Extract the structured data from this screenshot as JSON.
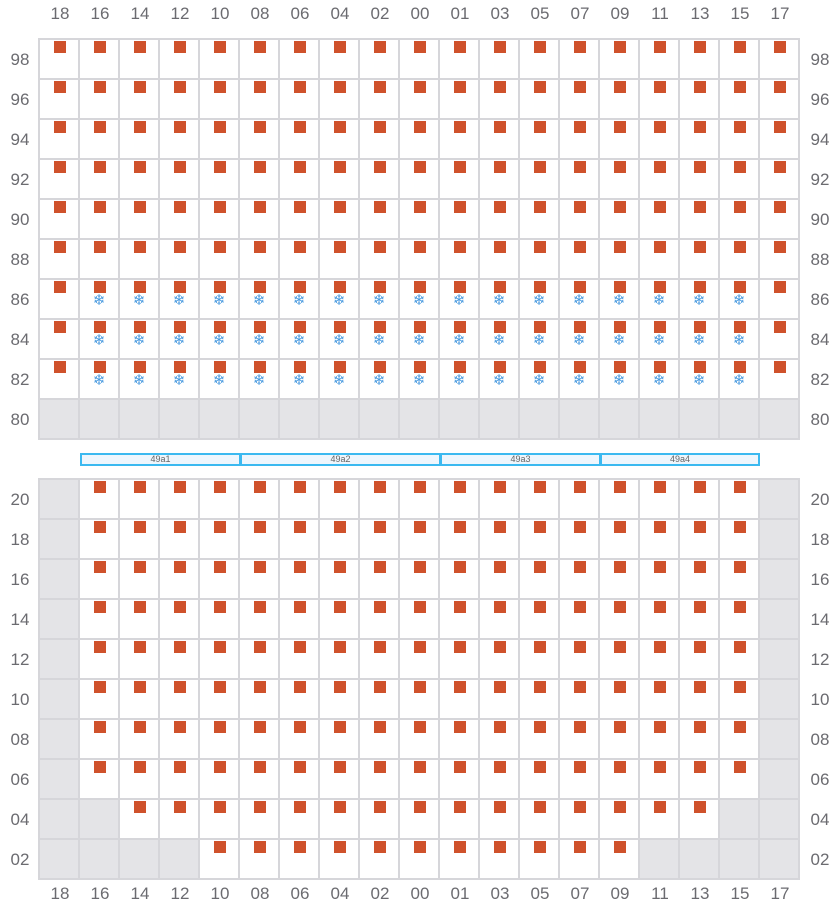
{
  "columns": [
    "18",
    "16",
    "14",
    "12",
    "10",
    "08",
    "06",
    "04",
    "02",
    "00",
    "01",
    "03",
    "05",
    "07",
    "09",
    "11",
    "13",
    "15",
    "17"
  ],
  "legend": {
    "s": "seat",
    "f": "seat with snowflake",
    "g": "unavailable",
    "e": "empty"
  },
  "colors": {
    "seat": "#cf512b",
    "snowflake": "#4a9be0",
    "unavailable": "#e4e4e7",
    "bar_border": "#3bb9f0"
  },
  "top_section": {
    "rows": [
      {
        "label": "98",
        "cells": "sssssssssssssssssss"
      },
      {
        "label": "96",
        "cells": "sssssssssssssssssss"
      },
      {
        "label": "94",
        "cells": "sssssssssssssssssss"
      },
      {
        "label": "92",
        "cells": "sssssssssssssssssss"
      },
      {
        "label": "90",
        "cells": "sssssssssssssssssss"
      },
      {
        "label": "88",
        "cells": "sssssssssssssssssss"
      },
      {
        "label": "86",
        "cells": "sfffffffffffffffffs"
      },
      {
        "label": "84",
        "cells": "sfffffffffffffffffs"
      },
      {
        "label": "82",
        "cells": "sfffffffffffffffffs"
      },
      {
        "label": "80",
        "cells": "ggggggggggggggggggg"
      }
    ]
  },
  "bars": [
    {
      "label": "49a1",
      "from": 1,
      "to": 4
    },
    {
      "label": "49a2",
      "from": 5,
      "to": 9
    },
    {
      "label": "49a3",
      "from": 10,
      "to": 13
    },
    {
      "label": "49a4",
      "from": 14,
      "to": 17
    }
  ],
  "bottom_section": {
    "rows": [
      {
        "label": "20",
        "cells": "gsssssssssssssssssg"
      },
      {
        "label": "18",
        "cells": "gsssssssssssssssssg"
      },
      {
        "label": "16",
        "cells": "gsssssssssssssssssg"
      },
      {
        "label": "14",
        "cells": "gsssssssssssssssssg"
      },
      {
        "label": "12",
        "cells": "gsssssssssssssssssg"
      },
      {
        "label": "10",
        "cells": "gsssssssssssssssssg"
      },
      {
        "label": "08",
        "cells": "gsssssssssssssssssg"
      },
      {
        "label": "06",
        "cells": "gsssssssssssssssssg"
      },
      {
        "label": "04",
        "cells": "ggsssssssssssssssgg"
      },
      {
        "label": "02",
        "cells": "ggggsssssssssssgggg"
      }
    ]
  }
}
